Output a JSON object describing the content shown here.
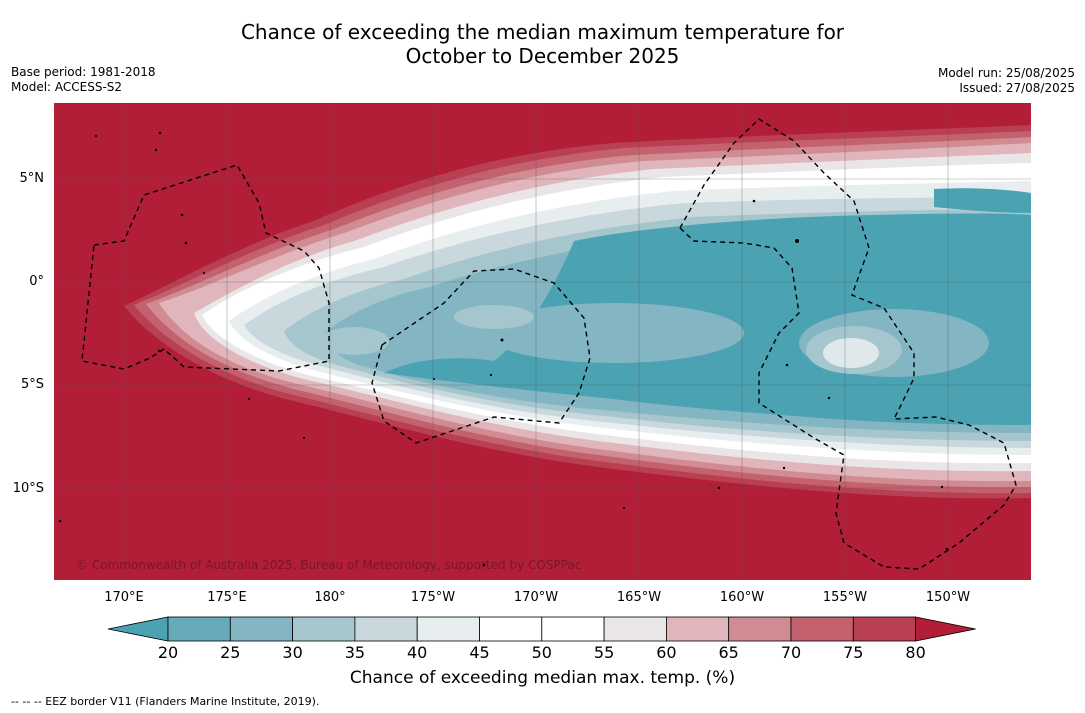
{
  "title": {
    "line1": "Chance of exceeding the median maximum temperature for",
    "line2": "October to December 2025"
  },
  "meta_left": {
    "base_period": "Base period: 1981-2018",
    "model": "Model: ACCESS-S2"
  },
  "meta_right": {
    "model_run": "Model run: 25/08/2025",
    "issued": "Issued: 27/08/2025"
  },
  "copyright": "© Commonwealth of Australia 2025, Bureau of Meteorology, supported by COSPPac",
  "latitude_labels": [
    "5°N",
    "0°",
    "5°S",
    "10°S"
  ],
  "longitude_labels": [
    "170°E",
    "175°E",
    "180°",
    "175°W",
    "170°W",
    "165°W",
    "160°W",
    "155°W",
    "150°W"
  ],
  "colorbar": {
    "ticks": [
      "20",
      "25",
      "30",
      "35",
      "40",
      "45",
      "50",
      "55",
      "60",
      "65",
      "70",
      "75",
      "80"
    ],
    "colors": [
      "#4aa2b3",
      "#66a9b9",
      "#83b5c3",
      "#a6c6cd",
      "#c8d8dc",
      "#e8eef0",
      "#ffffff",
      "#ffffff",
      "#eae6e7",
      "#e0b5bb",
      "#d18b93",
      "#c4616f",
      "#b84052",
      "#b21e37"
    ],
    "label": "Chance of exceeding median max. temp. (%)"
  },
  "legend_note": "--  --  -- EEZ border V11 (Flanders Marine Institute, 2019)."
}
